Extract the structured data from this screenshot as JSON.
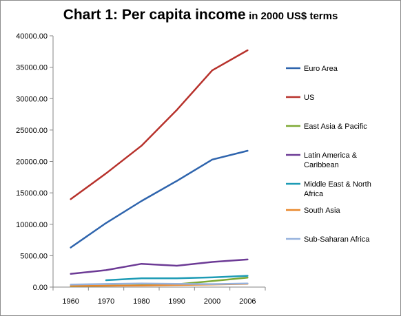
{
  "chart_data": {
    "type": "line",
    "title": "Chart 1: Per capita income",
    "subtitle": "in 2000 US$ terms",
    "xlabel": "",
    "ylabel": "",
    "categories": [
      "1960",
      "1970",
      "1980",
      "1990",
      "2000",
      "2006"
    ],
    "ylim": [
      0,
      40000
    ],
    "yticks": [
      "0.00",
      "5000.00",
      "10000.00",
      "15000.00",
      "20000.00",
      "25000.00",
      "30000.00",
      "35000.00",
      "40000.00"
    ],
    "grid": false,
    "legend_position": "right",
    "series": [
      {
        "name": "Euro Area",
        "color": "#2e64ad",
        "values": [
          6300,
          10200,
          13700,
          16900,
          20300,
          21700
        ]
      },
      {
        "name": "US",
        "color": "#b7312b",
        "values": [
          14000,
          18100,
          22500,
          28200,
          34500,
          37700
        ]
      },
      {
        "name": "East Asia & Pacific",
        "color": "#7ea934",
        "values": [
          150,
          220,
          300,
          450,
          950,
          1500
        ]
      },
      {
        "name": "Latin America & Caribbean",
        "color": "#6c3a95",
        "values": [
          2100,
          2700,
          3700,
          3400,
          4000,
          4400
        ]
      },
      {
        "name": "Middle East & North Africa",
        "color": "#1d9bb5",
        "values": [
          null,
          1100,
          1400,
          1400,
          1550,
          1800
        ]
      },
      {
        "name": "South Asia",
        "color": "#e9872a",
        "values": [
          200,
          220,
          250,
          330,
          420,
          530
        ]
      },
      {
        "name": "Sub-Saharan Africa",
        "color": "#96b2dd",
        "values": [
          400,
          500,
          580,
          520,
          480,
          580
        ]
      }
    ],
    "legend_lines": [
      [
        "Euro Area"
      ],
      [
        "US"
      ],
      [
        "East Asia & Pacific"
      ],
      [
        "Latin America &",
        "Caribbean"
      ],
      [
        "Middle East & North",
        "Africa"
      ],
      [
        "South Asia"
      ],
      [
        "Sub-Saharan Africa"
      ]
    ]
  }
}
